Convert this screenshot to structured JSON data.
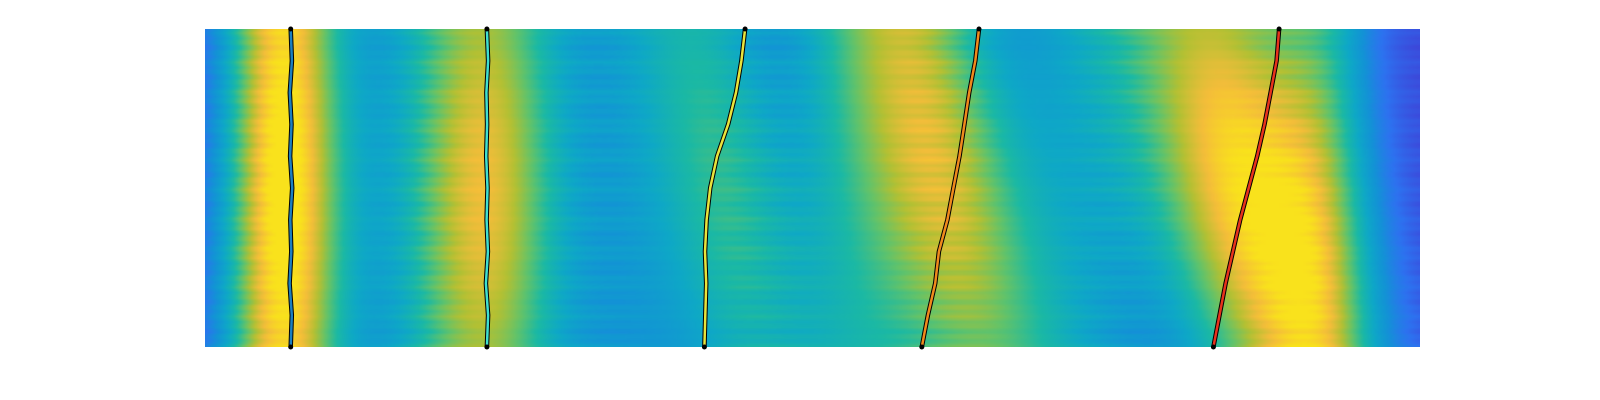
{
  "chart_data": {
    "type": "heatmap",
    "title": "",
    "xlabel": "",
    "ylabel": "",
    "axes_visible": false,
    "grid": false,
    "legend": "none",
    "colormap": "parula",
    "colormap_stops": [
      "#352a87",
      "#3d46d9",
      "#2d72f0",
      "#1392d6",
      "#0ea8c7",
      "#1bb9a4",
      "#62c36a",
      "#b3c033",
      "#f4bd3a",
      "#f9e21c"
    ],
    "xlim": [
      0,
      1
    ],
    "ylim": [
      0,
      1
    ],
    "bands": [
      {
        "x": 0.06,
        "width": 0.03,
        "intensity": 0.5
      },
      {
        "x": 0.2,
        "width": 0.06,
        "intensity": 0.25
      },
      {
        "x": 0.35,
        "width": 0.05,
        "intensity": 0.2
      },
      {
        "x": 0.54,
        "width": 0.05,
        "intensity": 0.35
      },
      {
        "x": 0.72,
        "width": 0.05,
        "intensity": 0.25
      },
      {
        "x": 0.92,
        "width": 0.03,
        "intensity": 0.3
      }
    ],
    "ridges": [
      {
        "x_start": 0.0705,
        "x_end": 0.0705,
        "peak_intensity": 0.55,
        "width": 0.04
      },
      {
        "x_start": 0.232,
        "x_end": 0.232,
        "peak_intensity": 0.65,
        "width": 0.042
      },
      {
        "x_start": 0.411,
        "x_end": 0.445,
        "peak_intensity": 0.5,
        "width": 0.04
      },
      {
        "x_start": 0.59,
        "x_end": 0.637,
        "peak_intensity": 0.7,
        "width": 0.045
      },
      {
        "x_start": 0.83,
        "x_end": 0.884,
        "peak_intensity": 0.97,
        "width": 0.055
      }
    ],
    "series": [
      {
        "color": "#1c7fc0",
        "x": [
          0.0705,
          0.0714,
          0.0696,
          0.071,
          0.0702,
          0.0718,
          0.07,
          0.0712,
          0.0698,
          0.0715,
          0.0705
        ],
        "y": [
          0.0,
          0.1,
          0.2,
          0.3,
          0.4,
          0.5,
          0.6,
          0.7,
          0.8,
          0.9,
          1.0
        ]
      },
      {
        "color": "#3fe0d0",
        "x": [
          0.232,
          0.233,
          0.2312,
          0.2328,
          0.2318,
          0.2325,
          0.2314,
          0.2322,
          0.2316,
          0.233,
          0.232
        ],
        "y": [
          0.0,
          0.1,
          0.2,
          0.3,
          0.4,
          0.5,
          0.6,
          0.7,
          0.8,
          0.9,
          1.0
        ]
      },
      {
        "color": "#e8e43c",
        "x": [
          0.411,
          0.4118,
          0.4125,
          0.4115,
          0.4128,
          0.4158,
          0.4215,
          0.4305,
          0.437,
          0.4415,
          0.4445
        ],
        "y": [
          0.0,
          0.1,
          0.2,
          0.3,
          0.4,
          0.5,
          0.6,
          0.7,
          0.8,
          0.9,
          1.0
        ]
      },
      {
        "color": "#f08a1c",
        "x": [
          0.59,
          0.595,
          0.601,
          0.604,
          0.611,
          0.616,
          0.621,
          0.625,
          0.629,
          0.634,
          0.637
        ],
        "y": [
          0.0,
          0.1,
          0.2,
          0.3,
          0.4,
          0.5,
          0.6,
          0.7,
          0.8,
          0.9,
          1.0
        ]
      },
      {
        "color": "#e8321c",
        "x": [
          0.83,
          0.835,
          0.84,
          0.846,
          0.852,
          0.859,
          0.866,
          0.872,
          0.877,
          0.882,
          0.884
        ],
        "y": [
          0.0,
          0.1,
          0.2,
          0.3,
          0.4,
          0.5,
          0.6,
          0.7,
          0.8,
          0.9,
          1.0
        ]
      }
    ]
  }
}
